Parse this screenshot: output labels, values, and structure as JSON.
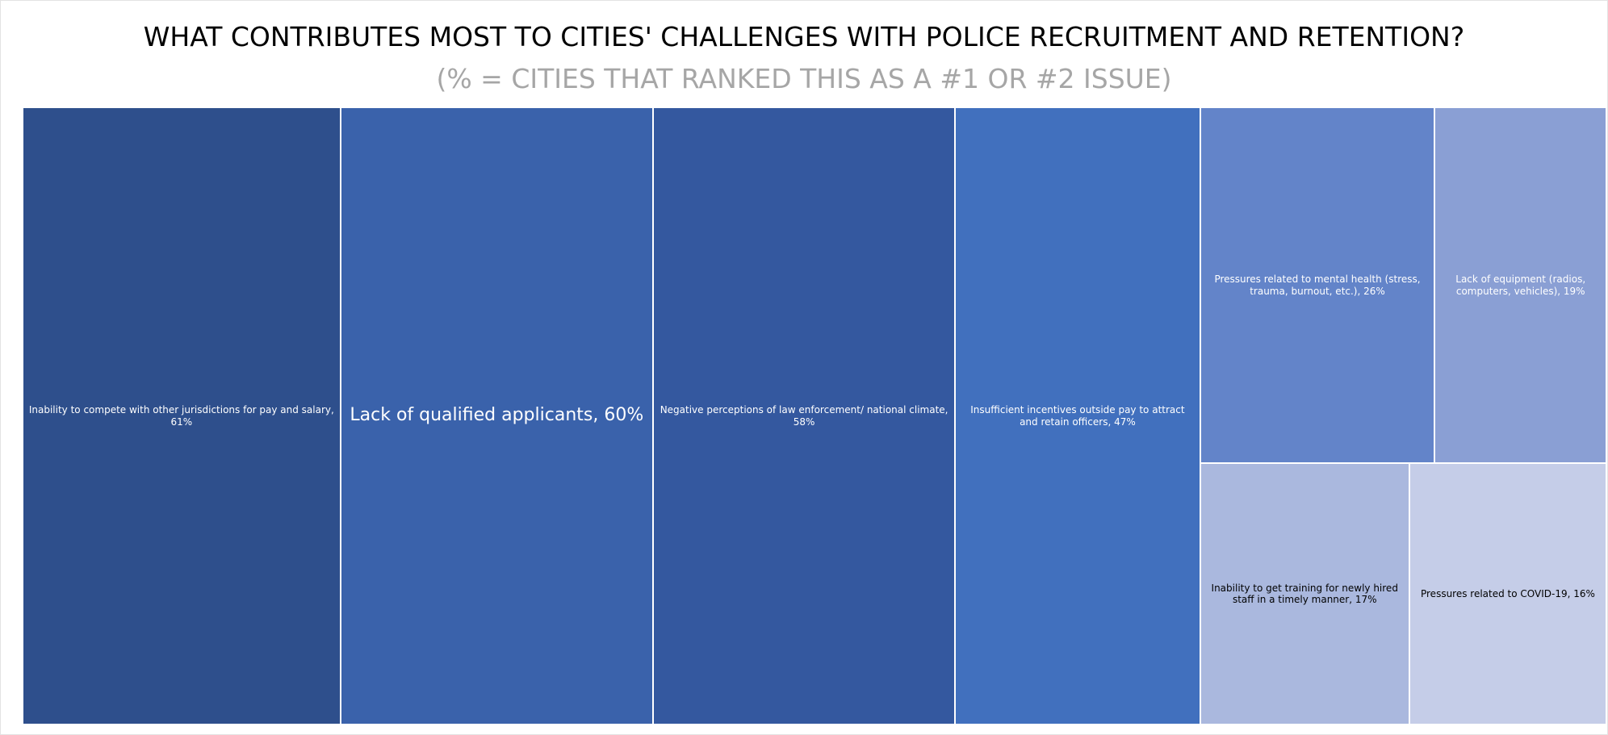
{
  "chart_data": {
    "type": "treemap",
    "title": "WHAT CONTRIBUTES MOST TO CITIES' CHALLENGES WITH POLICE RECRUITMENT AND RETENTION?",
    "subtitle": "(% = CITIES THAT RANKED THIS AS A #1 OR #2 ISSUE)",
    "categories": [
      "Inability to compete with other jurisdictions for pay and salary, 61%",
      "Lack of qualified applicants, 60%",
      "Negative perceptions of law enforcement/ national climate, 58%",
      "Insufficient incentives outside pay to attract and retain officers, 47%",
      "Pressures related to mental health (stress, trauma, burnout, etc.), 26%",
      "Lack of equipment (radios, computers, vehicles), 19%",
      "Inability to get training for newly hired staff in a timely manner, 17%",
      "Pressures related to COVID-19, 16%"
    ],
    "values": [
      61,
      60,
      58,
      47,
      26,
      19,
      17,
      16
    ],
    "colors": [
      "#2e4f8c",
      "#3a62ab",
      "#34589f",
      "#4170be",
      "#6384c9",
      "#8a9fd4",
      "#aab8de",
      "#c5cde8"
    ],
    "label_colors": [
      "#ffffff",
      "#ffffff",
      "#ffffff",
      "#ffffff",
      "#ffffff",
      "#ffffff",
      "#000000",
      "#000000"
    ]
  }
}
